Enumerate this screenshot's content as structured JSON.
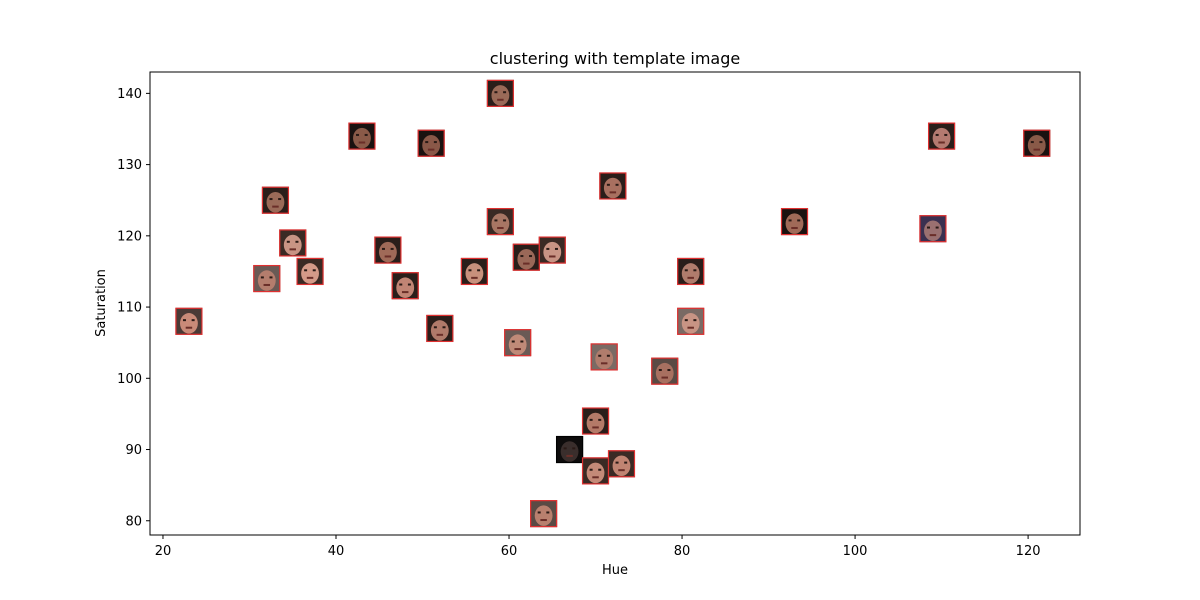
{
  "chart_data": {
    "type": "scatter",
    "title": "clustering with template image",
    "xlabel": "Hue",
    "ylabel": "Saturation",
    "xlim": [
      18.5,
      126
    ],
    "ylim": [
      78,
      143
    ],
    "xticks": [
      20,
      40,
      60,
      80,
      100,
      120
    ],
    "yticks": [
      80,
      90,
      100,
      110,
      120,
      130,
      140
    ],
    "grid": false,
    "marker": "face-thumbnail",
    "points": [
      {
        "x": 23,
        "y": 108,
        "skin": "#c98a78",
        "hair": "#4a3a36",
        "border": "#e03030"
      },
      {
        "x": 32,
        "y": 114,
        "skin": "#b47d6d",
        "hair": "#6a5a55",
        "border": "#e03030"
      },
      {
        "x": 33,
        "y": 125,
        "skin": "#9a6a58",
        "hair": "#2a1e1a",
        "border": "#e03030"
      },
      {
        "x": 35,
        "y": 119,
        "skin": "#c89484",
        "hair": "#3a2a24",
        "border": "#e03030"
      },
      {
        "x": 37,
        "y": 115,
        "skin": "#d49a88",
        "hair": "#3a2a24",
        "border": "#e03030"
      },
      {
        "x": 43,
        "y": 134,
        "skin": "#8a5a48",
        "hair": "#1a1210",
        "border": "#e03030"
      },
      {
        "x": 46,
        "y": 118,
        "skin": "#a06a58",
        "hair": "#2a1e1a",
        "border": "#e03030"
      },
      {
        "x": 48,
        "y": 113,
        "skin": "#c08474",
        "hair": "#2a1e1a",
        "border": "#e03030"
      },
      {
        "x": 51,
        "y": 133,
        "skin": "#8a5848",
        "hair": "#1a1210",
        "border": "#e03030"
      },
      {
        "x": 52,
        "y": 107,
        "skin": "#b07a6a",
        "hair": "#2a1e1a",
        "border": "#e03030"
      },
      {
        "x": 56,
        "y": 115,
        "skin": "#c8907c",
        "hair": "#2a1e1a",
        "border": "#e03030"
      },
      {
        "x": 59,
        "y": 140,
        "skin": "#9a6a58",
        "hair": "#2a1e1a",
        "border": "#e03030"
      },
      {
        "x": 59,
        "y": 122,
        "skin": "#a87664",
        "hair": "#3a2a24",
        "border": "#e03030"
      },
      {
        "x": 61,
        "y": 105,
        "skin": "#c08a78",
        "hair": "#6a5a55",
        "border": "#e03030"
      },
      {
        "x": 62,
        "y": 117,
        "skin": "#9a6858",
        "hair": "#2a1e1a",
        "border": "#e03030"
      },
      {
        "x": 65,
        "y": 118,
        "skin": "#c89484",
        "hair": "#3a2a24",
        "border": "#e03030"
      },
      {
        "x": 64,
        "y": 81,
        "skin": "#b8806e",
        "hair": "#5a4a44",
        "border": "#e03030"
      },
      {
        "x": 67,
        "y": 90,
        "skin": "#3a2e2c",
        "hair": "#0e0c0c",
        "border": "#000000"
      },
      {
        "x": 70,
        "y": 87,
        "skin": "#c48a78",
        "hair": "#3a2a24",
        "border": "#e03030"
      },
      {
        "x": 70,
        "y": 94,
        "skin": "#b47a68",
        "hair": "#2a1e1a",
        "border": "#e03030"
      },
      {
        "x": 71,
        "y": 103,
        "skin": "#b07c6c",
        "hair": "#7a6a64",
        "border": "#e03030"
      },
      {
        "x": 72,
        "y": 127,
        "skin": "#a87060",
        "hair": "#2a1e1a",
        "border": "#e03030"
      },
      {
        "x": 73,
        "y": 88,
        "skin": "#c08472",
        "hair": "#3a2a24",
        "border": "#e03030"
      },
      {
        "x": 78,
        "y": 101,
        "skin": "#a87060",
        "hair": "#5a4a44",
        "border": "#e03030"
      },
      {
        "x": 81,
        "y": 115,
        "skin": "#b07c6c",
        "hair": "#2a1e1a",
        "border": "#e03030"
      },
      {
        "x": 81,
        "y": 108,
        "skin": "#c89484",
        "hair": "#7a6a64",
        "border": "#e03030"
      },
      {
        "x": 93,
        "y": 122,
        "skin": "#a06a58",
        "hair": "#1a1210",
        "border": "#e03030"
      },
      {
        "x": 109,
        "y": 121,
        "skin": "#9a7070",
        "hair": "#3a3050",
        "border": "#e03030"
      },
      {
        "x": 110,
        "y": 134,
        "skin": "#b47a70",
        "hair": "#2a1e1a",
        "border": "#e03030"
      },
      {
        "x": 121,
        "y": 133,
        "skin": "#8a5a48",
        "hair": "#1a1210",
        "border": "#e03030"
      }
    ]
  }
}
